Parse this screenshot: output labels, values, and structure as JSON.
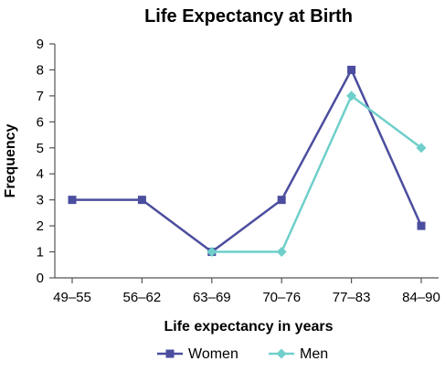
{
  "chart_data": {
    "type": "line",
    "title": "Life Expectancy at Birth",
    "xlabel": "Life expectancy in years",
    "ylabel": "Frequency",
    "categories": [
      "49–55",
      "56–62",
      "63–69",
      "70–76",
      "77–83",
      "84–90"
    ],
    "y_ticks": [
      "0",
      "1",
      "2",
      "3",
      "4",
      "5",
      "6",
      "7",
      "8",
      "9"
    ],
    "ylim": [
      0,
      9
    ],
    "grid": false,
    "legend_position": "bottom",
    "series": [
      {
        "name": "Women",
        "color": "#4B4D9E",
        "marker": "square",
        "values": [
          3,
          3,
          1,
          3,
          8,
          2
        ]
      },
      {
        "name": "Men",
        "color": "#6FCFCB",
        "marker": "diamond",
        "values": [
          null,
          null,
          1,
          1,
          7,
          5
        ]
      }
    ]
  }
}
